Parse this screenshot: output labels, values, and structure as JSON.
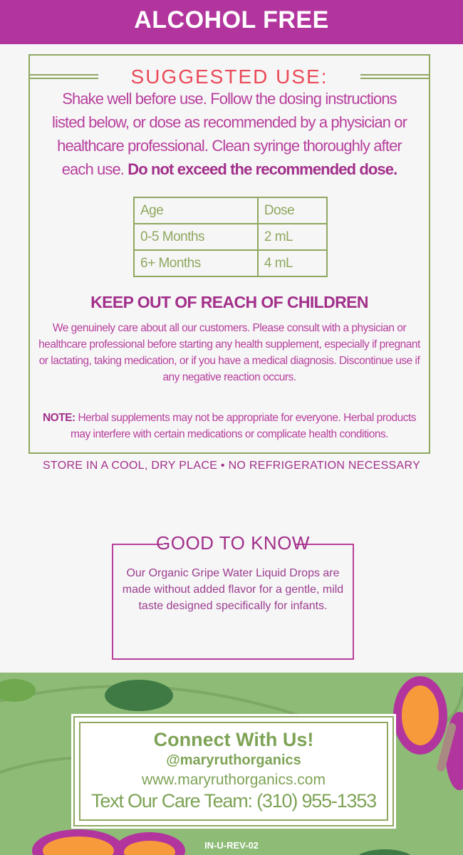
{
  "banner": "ALCOHOL FREE",
  "suggested_use": {
    "title": "SUGGESTED USE:",
    "text": "Shake well before use. Follow the dosing instructions listed below, or dose as recommended by a physician or healthcare professional. Clean syringe thoroughly after each use.",
    "bold": "Do not exceed the recommended dose."
  },
  "dosing_table": {
    "headers": [
      "Age",
      "Dose"
    ],
    "rows": [
      [
        "0-5 Months",
        "2 mL"
      ],
      [
        "6+ Months",
        "4 mL"
      ]
    ]
  },
  "warning": {
    "title": "KEEP OUT OF REACH OF CHILDREN",
    "text": "We genuinely care about all our customers. Please consult with a physician or healthcare professional before starting any health supplement, especially if pregnant or lactating, taking medication, or if you have a medical diagnosis. Discontinue use if any negative reaction occurs.",
    "note_label": "NOTE:",
    "note_text": "Herbal supplements may not be appropriate for everyone. Herbal products may interfere with certain medications or complicate health conditions."
  },
  "storage": "STORE IN A COOL, DRY PLACE • NO REFRIGERATION NECESSARY",
  "good_to_know": {
    "title": "GOOD TO KNOW",
    "text": "Our Organic Gripe Water Liquid Drops are made without added flavor for a gentle, mild taste designed specifically for infants."
  },
  "connect": {
    "title": "Connect With Us!",
    "handle": "@maryruthorganics",
    "website": "www.maryruthorganics.com",
    "phone": "Text Our Care Team: (310) 955-1353"
  },
  "code": "IN-U-REV-02",
  "colors": {
    "purple": "#b2359e",
    "green": "#8ebc77",
    "accent_red": "#ea4a57",
    "orange": "#f79a3c"
  }
}
